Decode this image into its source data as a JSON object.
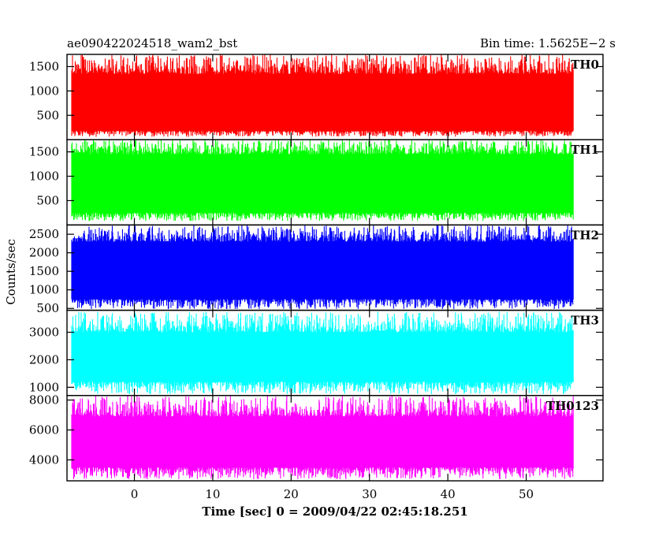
{
  "chart_data": {
    "type": "line",
    "title_left": "ae090422024518_wam2_bst",
    "title_right": "Bin time: 1.5625E−2 s",
    "xlabel": "Time [sec] 0 = 2009/04/22 02:45:18.251",
    "ylabel": "Counts/sec",
    "xlim": [
      -8.6,
      59.8
    ],
    "data_x_range": [
      -8.0,
      56.0
    ],
    "x_ticks": [
      0,
      10,
      20,
      30,
      40,
      50
    ],
    "x_tick_labels": [
      "0",
      "10",
      "20",
      "30",
      "40",
      "50"
    ],
    "grid": false,
    "panels": [
      {
        "name": "TH0",
        "color": "#ff0000",
        "ylim": [
          0,
          1750
        ],
        "y_ticks": [
          500,
          1000,
          1500
        ],
        "y_tick_labels": [
          "500",
          "1000",
          "1500"
        ],
        "band_low": 180,
        "band_high": 1350,
        "peak": 1750,
        "trough": 60
      },
      {
        "name": "TH1",
        "color": "#00ff00",
        "ylim": [
          0,
          1750
        ],
        "y_ticks": [
          500,
          1000,
          1500
        ],
        "y_tick_labels": [
          "500",
          "1000",
          "1500"
        ],
        "band_low": 250,
        "band_high": 1450,
        "peak": 1750,
        "trough": 80
      },
      {
        "name": "TH2",
        "color": "#0000ff",
        "ylim": [
          450,
          2750
        ],
        "y_ticks": [
          500,
          1000,
          1500,
          2000,
          2500
        ],
        "y_tick_labels": [
          "500",
          "1000",
          "1500",
          "2000",
          "2500"
        ],
        "band_low": 750,
        "band_high": 2300,
        "peak": 2750,
        "trough": 480
      },
      {
        "name": "TH3",
        "color": "#00ffff",
        "ylim": [
          700,
          3800
        ],
        "y_ticks": [
          1000,
          2000,
          3000
        ],
        "y_tick_labels": [
          "1000",
          "2000",
          "3000"
        ],
        "band_low": 1200,
        "band_high": 3000,
        "peak": 3750,
        "trough": 750
      },
      {
        "name": "TH0123",
        "color": "#ff00ff",
        "ylim": [
          2600,
          8300
        ],
        "y_ticks": [
          4000,
          6000,
          8000
        ],
        "y_tick_labels": [
          "4000",
          "6000",
          "8000"
        ],
        "band_low": 3500,
        "band_high": 6900,
        "peak": 8300,
        "trough": 2700
      }
    ]
  }
}
